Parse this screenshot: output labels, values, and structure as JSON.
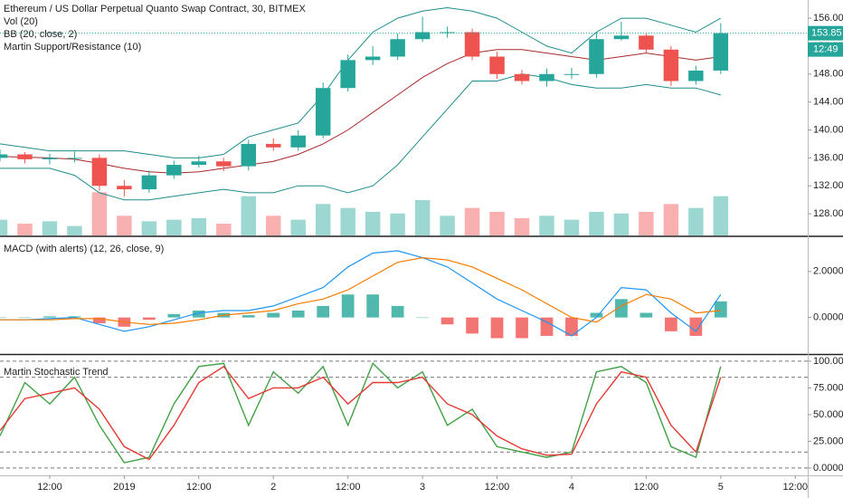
{
  "chart_data": [
    {
      "type": "candlestick",
      "title": "Ethereum / US Dollar Perpetual Quanto Swap Contract, 30, BITMEX",
      "x": [
        0,
        4,
        8,
        12,
        16,
        20,
        24,
        28,
        32,
        36,
        40,
        44,
        48,
        52,
        56,
        60,
        64,
        68,
        72,
        76,
        80,
        84,
        88,
        92,
        96,
        100,
        104,
        108,
        112,
        116
      ],
      "xlim": [
        0,
        130
      ],
      "open": [
        136.0,
        136.5,
        135.8,
        136.0,
        136.0,
        132.0,
        131.5,
        133.5,
        135.0,
        135.5,
        134.8,
        138.0,
        137.5,
        139.2,
        146.0,
        150.0,
        150.5,
        153.0,
        154.0,
        154.0,
        150.5,
        148.0,
        147.0,
        148.0,
        148.0,
        153.0,
        153.5,
        151.5,
        147.0,
        148.5
      ],
      "high": [
        137.2,
        136.8,
        136.6,
        136.9,
        136.5,
        132.8,
        134.2,
        135.6,
        136.3,
        136.0,
        138.6,
        138.8,
        140.0,
        146.8,
        150.8,
        152.0,
        153.8,
        156.2,
        154.8,
        154.5,
        151.2,
        148.6,
        148.8,
        148.9,
        154.0,
        155.5,
        153.9,
        152.0,
        149.2,
        155.3
      ],
      "low": [
        135.5,
        135.2,
        135.1,
        135.4,
        131.3,
        130.5,
        131.0,
        133.0,
        134.6,
        134.1,
        134.2,
        137.0,
        137.0,
        138.8,
        145.5,
        149.3,
        150.0,
        152.6,
        153.2,
        150.0,
        147.3,
        146.5,
        146.2,
        147.3,
        147.5,
        152.8,
        151.0,
        146.3,
        146.5,
        148.0
      ],
      "close": [
        136.5,
        135.8,
        136.0,
        136.0,
        132.0,
        131.5,
        133.5,
        135.0,
        135.5,
        134.8,
        138.0,
        137.5,
        139.2,
        146.0,
        150.0,
        150.5,
        153.0,
        154.0,
        154.0,
        150.5,
        148.0,
        147.0,
        148.0,
        148.0,
        153.0,
        153.5,
        151.5,
        147.0,
        148.5,
        153.85
      ],
      "up_color": "#26a69a",
      "down_color": "#ef5350",
      "ylim": [
        124.9,
        158.6
      ],
      "yticks": [
        {
          "value": 128,
          "label": "128.00"
        },
        {
          "value": 132,
          "label": "132.00"
        },
        {
          "value": 136,
          "label": "136.00"
        },
        {
          "value": 140,
          "label": "140.00"
        },
        {
          "value": 144,
          "label": "144.00"
        },
        {
          "value": 148,
          "label": "148.00"
        },
        {
          "value": 152,
          "label": "152.00"
        },
        {
          "value": 156,
          "label": "156.00"
        }
      ],
      "volume": {
        "name": "Vol (20)",
        "ylim": [
          0,
          300
        ],
        "values": [
          20,
          15,
          18,
          12,
          55,
          25,
          18,
          20,
          22,
          15,
          50,
          25,
          20,
          40,
          35,
          30,
          28,
          45,
          25,
          35,
          30,
          22,
          25,
          20,
          30,
          28,
          30,
          40,
          35,
          50
        ]
      },
      "bands": {
        "name": "BB (20, close, 2)",
        "color": "#1e8c8c",
        "basis_color": "#a52a2a",
        "upper": [
          138,
          137.5,
          137,
          137,
          137,
          137,
          136.5,
          136,
          136,
          136.5,
          139,
          140,
          141,
          145,
          150,
          154,
          156,
          157,
          157.5,
          157,
          156,
          154,
          152,
          151,
          154,
          156,
          156,
          155,
          154,
          156
        ],
        "basis": [
          136.2,
          136.1,
          136,
          135.8,
          135.2,
          134.5,
          134,
          133.8,
          134,
          134.5,
          135,
          135.5,
          136.5,
          138,
          140,
          142.5,
          145,
          147.5,
          149.5,
          151,
          151.5,
          151.5,
          151,
          150.5,
          150,
          150.5,
          151,
          150.5,
          150,
          150.5
        ],
        "lower": [
          134.5,
          134.5,
          134.5,
          133.5,
          131,
          130,
          130,
          130.5,
          131,
          131.5,
          131,
          131,
          132,
          132,
          131,
          132,
          135,
          139,
          143,
          147,
          147,
          148,
          147.5,
          146.5,
          146,
          146,
          146.5,
          146,
          146,
          145
        ]
      },
      "indicator": "Martin Support/Resistance (10)",
      "last_price": 153.85,
      "countdown": "12:49",
      "last_color": "#26a69a",
      "grid": false
    },
    {
      "type": "macd",
      "title": "MACD (with alerts) (12, 26, close, 9)",
      "x": [
        0,
        4,
        8,
        12,
        16,
        20,
        24,
        28,
        32,
        36,
        40,
        44,
        48,
        52,
        56,
        60,
        64,
        68,
        72,
        76,
        80,
        84,
        88,
        92,
        96,
        100,
        104,
        108,
        112,
        116
      ],
      "xlim": [
        0,
        130
      ],
      "ylim": [
        -1.55,
        3.45
      ],
      "yticks": [
        {
          "value": 0,
          "label": "0.0000"
        },
        {
          "value": 2,
          "label": "2.0000"
        }
      ],
      "histogram": {
        "up_color": "#26a69a",
        "down_color": "#ef5350",
        "values": [
          0,
          0,
          0.05,
          0.05,
          -0.25,
          -0.4,
          -0.1,
          0.15,
          0.3,
          0.2,
          0.1,
          0.2,
          0.3,
          0.5,
          1.0,
          1.0,
          0.5,
          0,
          -0.3,
          -0.7,
          -0.9,
          -0.9,
          -0.8,
          -0.8,
          0.2,
          0.8,
          0.2,
          -0.6,
          -0.8,
          0.7
        ]
      },
      "series": [
        {
          "color": "#2196f3",
          "values": [
            -0.1,
            -0.1,
            -0.05,
            0.0,
            -0.3,
            -0.6,
            -0.4,
            -0.1,
            0.2,
            0.3,
            0.3,
            0.5,
            0.9,
            1.3,
            2.2,
            2.8,
            2.9,
            2.6,
            2.2,
            1.5,
            0.8,
            0.3,
            -0.2,
            -0.8,
            0.0,
            1.3,
            1.2,
            0.2,
            -0.6,
            1.0
          ]
        },
        {
          "color": "#f57c00",
          "values": [
            -0.1,
            -0.1,
            -0.1,
            -0.05,
            -0.05,
            -0.2,
            -0.3,
            -0.25,
            -0.1,
            0.1,
            0.2,
            0.3,
            0.6,
            0.8,
            1.2,
            1.8,
            2.4,
            2.6,
            2.5,
            2.2,
            1.7,
            1.2,
            0.6,
            0.0,
            -0.2,
            0.5,
            1.0,
            0.8,
            0.2,
            0.3
          ]
        }
      ],
      "grid": false
    },
    {
      "type": "stochastic",
      "title": "Martin Stochastic Trend",
      "x": [
        0,
        4,
        8,
        12,
        16,
        20,
        24,
        28,
        32,
        36,
        40,
        44,
        48,
        52,
        56,
        60,
        64,
        68,
        72,
        76,
        80,
        84,
        88,
        92,
        96,
        100,
        104,
        108,
        112,
        116
      ],
      "xlim": [
        0,
        130
      ],
      "xticks": [
        {
          "value": 8,
          "label": "12:00"
        },
        {
          "value": 20,
          "label": "2019"
        },
        {
          "value": 32,
          "label": "12:00"
        },
        {
          "value": 44,
          "label": "2"
        },
        {
          "value": 56,
          "label": "12:00"
        },
        {
          "value": 68,
          "label": "3"
        },
        {
          "value": 80,
          "label": "12:00"
        },
        {
          "value": 92,
          "label": "4"
        },
        {
          "value": 104,
          "label": "12:00"
        },
        {
          "value": 116,
          "label": "5"
        },
        {
          "value": 128,
          "label": "12:00"
        }
      ],
      "ylim": [
        -6,
        105
      ],
      "yticks": [
        {
          "value": 0,
          "label": "0.0000"
        },
        {
          "value": 25,
          "label": "25.0000"
        },
        {
          "value": 50,
          "label": "50.0000"
        },
        {
          "value": 75,
          "label": "75.0000"
        },
        {
          "value": 100,
          "label": "100.0000"
        }
      ],
      "levels": [
        0,
        15,
        85,
        100
      ],
      "series": [
        {
          "color": "#43a047",
          "values": [
            30,
            80,
            60,
            85,
            40,
            5,
            10,
            60,
            95,
            98,
            40,
            90,
            70,
            95,
            40,
            98,
            75,
            90,
            40,
            55,
            20,
            15,
            10,
            15,
            90,
            95,
            80,
            20,
            10,
            95
          ]
        },
        {
          "color": "#e53935",
          "values": [
            35,
            65,
            70,
            75,
            55,
            20,
            8,
            40,
            80,
            95,
            65,
            75,
            75,
            85,
            60,
            80,
            80,
            85,
            60,
            50,
            30,
            18,
            12,
            13,
            60,
            90,
            85,
            40,
            15,
            85
          ]
        }
      ],
      "grid": false
    }
  ]
}
